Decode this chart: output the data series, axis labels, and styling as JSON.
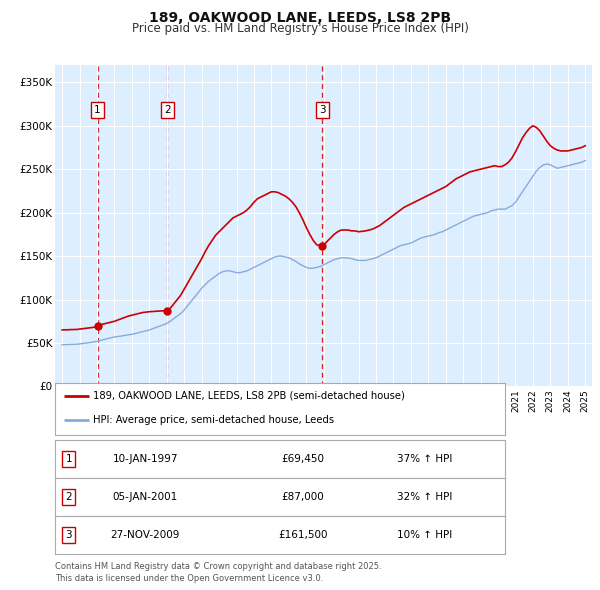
{
  "title": "189, OAKWOOD LANE, LEEDS, LS8 2PB",
  "subtitle": "Price paid vs. HM Land Registry's House Price Index (HPI)",
  "legend_line1": "189, OAKWOOD LANE, LEEDS, LS8 2PB (semi-detached house)",
  "legend_line2": "HPI: Average price, semi-detached house, Leeds",
  "fig_bg_color": "#ffffff",
  "plot_bg_color": "#ddeeff",
  "grid_color": "#ffffff",
  "red_line_color": "#cc0000",
  "blue_line_color": "#88aadd",
  "sale_marker_color": "#cc0000",
  "dashed_line_color": "#cc0000",
  "box_color": "#cc0000",
  "ylim": [
    0,
    370000
  ],
  "yticks": [
    0,
    50000,
    100000,
    150000,
    200000,
    250000,
    300000,
    350000
  ],
  "ytick_labels": [
    "£0",
    "£50K",
    "£100K",
    "£150K",
    "£200K",
    "£250K",
    "£300K",
    "£350K"
  ],
  "xmin": 1994.6,
  "xmax": 2025.4,
  "sales": [
    {
      "num": 1,
      "year": 1997.03,
      "price": 69450,
      "label": "10-JAN-1997",
      "amount": "£69,450",
      "note": "37% ↑ HPI"
    },
    {
      "num": 2,
      "year": 2001.03,
      "price": 87000,
      "label": "05-JAN-2001",
      "amount": "£87,000",
      "note": "32% ↑ HPI"
    },
    {
      "num": 3,
      "year": 2009.92,
      "price": 161500,
      "label": "27-NOV-2009",
      "amount": "£161,500",
      "note": "10% ↑ HPI"
    }
  ],
  "footer": "Contains HM Land Registry data © Crown copyright and database right 2025.\nThis data is licensed under the Open Government Licence v3.0.",
  "hpi_data": {
    "years": [
      1995.0,
      1995.1,
      1995.2,
      1995.3,
      1995.4,
      1995.5,
      1995.6,
      1995.7,
      1995.8,
      1995.9,
      1996.0,
      1996.1,
      1996.2,
      1996.3,
      1996.4,
      1996.5,
      1996.6,
      1996.7,
      1996.8,
      1996.9,
      1997.0,
      1997.1,
      1997.2,
      1997.3,
      1997.4,
      1997.5,
      1997.6,
      1997.7,
      1997.8,
      1997.9,
      1998.0,
      1998.2,
      1998.4,
      1998.6,
      1998.8,
      1999.0,
      1999.2,
      1999.4,
      1999.6,
      1999.8,
      2000.0,
      2000.2,
      2000.4,
      2000.6,
      2000.8,
      2001.0,
      2001.2,
      2001.4,
      2001.6,
      2001.8,
      2002.0,
      2002.2,
      2002.4,
      2002.6,
      2002.8,
      2003.0,
      2003.2,
      2003.4,
      2003.6,
      2003.8,
      2004.0,
      2004.2,
      2004.4,
      2004.6,
      2004.8,
      2005.0,
      2005.2,
      2005.4,
      2005.6,
      2005.8,
      2006.0,
      2006.2,
      2006.4,
      2006.6,
      2006.8,
      2007.0,
      2007.2,
      2007.4,
      2007.6,
      2007.8,
      2008.0,
      2008.2,
      2008.4,
      2008.6,
      2008.8,
      2009.0,
      2009.2,
      2009.4,
      2009.6,
      2009.8,
      2010.0,
      2010.2,
      2010.4,
      2010.6,
      2010.8,
      2011.0,
      2011.2,
      2011.4,
      2011.6,
      2011.8,
      2012.0,
      2012.2,
      2012.4,
      2012.6,
      2012.8,
      2013.0,
      2013.2,
      2013.4,
      2013.6,
      2013.8,
      2014.0,
      2014.2,
      2014.4,
      2014.6,
      2014.8,
      2015.0,
      2015.2,
      2015.4,
      2015.6,
      2015.8,
      2016.0,
      2016.2,
      2016.4,
      2016.6,
      2016.8,
      2017.0,
      2017.2,
      2017.4,
      2017.6,
      2017.8,
      2018.0,
      2018.2,
      2018.4,
      2018.6,
      2018.8,
      2019.0,
      2019.2,
      2019.4,
      2019.6,
      2019.8,
      2020.0,
      2020.2,
      2020.4,
      2020.6,
      2020.8,
      2021.0,
      2021.2,
      2021.4,
      2021.6,
      2021.8,
      2022.0,
      2022.2,
      2022.4,
      2022.6,
      2022.8,
      2023.0,
      2023.2,
      2023.4,
      2023.6,
      2023.8,
      2024.0,
      2024.2,
      2024.4,
      2024.6,
      2024.8,
      2025.0
    ],
    "values": [
      48000,
      48200,
      48100,
      48300,
      48200,
      48500,
      48400,
      48600,
      48500,
      48700,
      49000,
      49200,
      49500,
      49800,
      50000,
      50200,
      50500,
      50800,
      51000,
      51500,
      52000,
      52500,
      53000,
      53500,
      54000,
      54500,
      55000,
      55500,
      56000,
      56500,
      57000,
      57500,
      58000,
      58800,
      59500,
      60000,
      61000,
      62000,
      63000,
      64000,
      65000,
      66500,
      68000,
      69500,
      71000,
      72500,
      75000,
      78000,
      81000,
      84000,
      88000,
      93000,
      98000,
      103000,
      108000,
      113000,
      117000,
      121000,
      124000,
      127000,
      130000,
      132000,
      133000,
      133000,
      132000,
      131000,
      131000,
      132000,
      133000,
      135000,
      137000,
      139000,
      141000,
      143000,
      145000,
      147000,
      149000,
      150000,
      150000,
      149000,
      148000,
      146000,
      144000,
      141000,
      139000,
      137000,
      136000,
      136000,
      137000,
      138000,
      140000,
      142000,
      144000,
      146000,
      147000,
      148000,
      148000,
      148000,
      147000,
      146000,
      145000,
      145000,
      145000,
      146000,
      147000,
      148000,
      150000,
      152000,
      154000,
      156000,
      158000,
      160000,
      162000,
      163000,
      164000,
      165000,
      167000,
      169000,
      171000,
      172000,
      173000,
      174000,
      175000,
      177000,
      178000,
      180000,
      182000,
      184000,
      186000,
      188000,
      190000,
      192000,
      194000,
      196000,
      197000,
      198000,
      199000,
      200000,
      202000,
      203000,
      204000,
      204000,
      204000,
      206000,
      208000,
      212000,
      218000,
      224000,
      230000,
      236000,
      242000,
      248000,
      252000,
      255000,
      256000,
      255000,
      253000,
      251000,
      252000,
      253000,
      254000,
      255000,
      256000,
      257000,
      258000,
      260000
    ]
  },
  "price_paid_data": {
    "years": [
      1995.0,
      1995.1,
      1995.2,
      1995.3,
      1995.4,
      1995.5,
      1995.6,
      1995.7,
      1995.8,
      1995.9,
      1996.0,
      1996.2,
      1996.4,
      1996.6,
      1996.8,
      1997.0,
      1997.03,
      1997.1,
      1997.2,
      1997.4,
      1997.6,
      1997.8,
      1998.0,
      1998.2,
      1998.4,
      1998.6,
      1998.8,
      1999.0,
      1999.2,
      1999.4,
      1999.6,
      1999.8,
      2000.0,
      2000.2,
      2000.4,
      2000.6,
      2000.8,
      2001.0,
      2001.03,
      2001.2,
      2001.4,
      2001.6,
      2001.8,
      2002.0,
      2002.2,
      2002.4,
      2002.6,
      2002.8,
      2003.0,
      2003.2,
      2003.4,
      2003.6,
      2003.8,
      2004.0,
      2004.2,
      2004.4,
      2004.6,
      2004.8,
      2005.0,
      2005.2,
      2005.4,
      2005.6,
      2005.8,
      2006.0,
      2006.2,
      2006.4,
      2006.6,
      2006.8,
      2007.0,
      2007.2,
      2007.4,
      2007.6,
      2007.8,
      2008.0,
      2008.2,
      2008.4,
      2008.6,
      2008.8,
      2009.0,
      2009.2,
      2009.4,
      2009.6,
      2009.8,
      2009.92,
      2010.0,
      2010.2,
      2010.4,
      2010.6,
      2010.8,
      2011.0,
      2011.2,
      2011.4,
      2011.6,
      2011.8,
      2012.0,
      2012.2,
      2012.4,
      2012.6,
      2012.8,
      2013.0,
      2013.2,
      2013.4,
      2013.6,
      2013.8,
      2014.0,
      2014.2,
      2014.4,
      2014.6,
      2014.8,
      2015.0,
      2015.2,
      2015.4,
      2015.6,
      2015.8,
      2016.0,
      2016.2,
      2016.4,
      2016.6,
      2016.8,
      2017.0,
      2017.2,
      2017.4,
      2017.6,
      2017.8,
      2018.0,
      2018.2,
      2018.4,
      2018.6,
      2018.8,
      2019.0,
      2019.2,
      2019.4,
      2019.6,
      2019.8,
      2020.0,
      2020.2,
      2020.4,
      2020.6,
      2020.8,
      2021.0,
      2021.2,
      2021.4,
      2021.6,
      2021.8,
      2022.0,
      2022.2,
      2022.4,
      2022.6,
      2022.8,
      2023.0,
      2023.2,
      2023.4,
      2023.6,
      2023.8,
      2024.0,
      2024.2,
      2024.4,
      2024.6,
      2024.8,
      2025.0
    ],
    "values": [
      65000,
      65200,
      65100,
      65300,
      65200,
      65500,
      65400,
      65600,
      65500,
      65700,
      66000,
      66500,
      67000,
      67500,
      68000,
      69000,
      69450,
      70000,
      71000,
      72000,
      73000,
      74000,
      75000,
      76500,
      78000,
      79500,
      81000,
      82000,
      83000,
      84000,
      85000,
      85500,
      86000,
      86300,
      86500,
      86800,
      87000,
      87000,
      87000,
      90000,
      95000,
      100000,
      105000,
      112000,
      119000,
      126000,
      133000,
      140000,
      147000,
      155000,
      162000,
      168000,
      174000,
      178000,
      182000,
      186000,
      190000,
      194000,
      196000,
      198000,
      200000,
      203000,
      207000,
      212000,
      216000,
      218000,
      220000,
      222000,
      224000,
      224000,
      223000,
      221000,
      219000,
      216000,
      212000,
      207000,
      200000,
      192000,
      183000,
      175000,
      168000,
      163000,
      162000,
      161500,
      163000,
      167000,
      171000,
      175000,
      178000,
      180000,
      180000,
      180000,
      179000,
      179000,
      178000,
      178500,
      179000,
      180000,
      181000,
      183000,
      185000,
      188000,
      191000,
      194000,
      197000,
      200000,
      203000,
      206000,
      208000,
      210000,
      212000,
      214000,
      216000,
      218000,
      220000,
      222000,
      224000,
      226000,
      228000,
      230000,
      233000,
      236000,
      239000,
      241000,
      243000,
      245000,
      247000,
      248000,
      249000,
      250000,
      251000,
      252000,
      253000,
      254000,
      253000,
      253000,
      255000,
      258000,
      263000,
      270000,
      278000,
      286000,
      292000,
      297000,
      300000,
      298000,
      294000,
      288000,
      282000,
      277000,
      274000,
      272000,
      271000,
      271000,
      271000,
      272000,
      273000,
      274000,
      275000,
      277000
    ]
  }
}
